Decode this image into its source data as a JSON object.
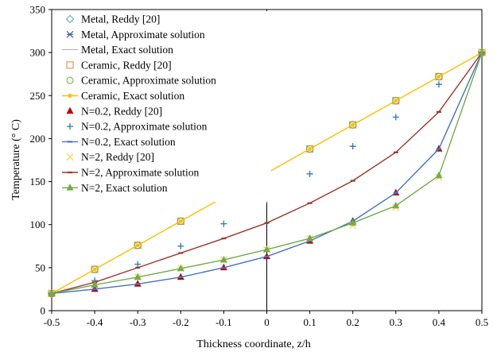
{
  "chart_data": {
    "type": "line",
    "title": "",
    "xlabel": "Thickness coordinate, z/h",
    "ylabel": "Temperature (° C)",
    "xlim": [
      -0.5,
      0.5
    ],
    "ylim": [
      0,
      350
    ],
    "x_ticks": [
      "-0.5",
      "-0.4",
      "-0.3",
      "-0.2",
      "-0.1",
      "0",
      "0.1",
      "0.2",
      "0.3",
      "0.4",
      "0.5"
    ],
    "y_ticks": [
      "0",
      "50",
      "100",
      "150",
      "200",
      "250",
      "300",
      "350"
    ],
    "grid": false,
    "legend_position": "top-left",
    "x": [
      -0.5,
      -0.4,
      -0.3,
      -0.2,
      -0.1,
      0,
      0.1,
      0.2,
      0.3,
      0.4,
      0.5
    ],
    "series": [
      {
        "name": "Metal, Reddy [20]",
        "color": "#5b9bd5",
        "marker": "diamond-open",
        "line": false,
        "values": [
          20,
          48,
          76,
          104,
          132,
          160,
          188,
          216,
          244,
          272,
          300
        ]
      },
      {
        "name": "Metal, Approximate solution",
        "color": "#3f5fa0",
        "marker": "star",
        "line": false,
        "values": [
          20,
          48,
          76,
          104,
          132,
          160,
          188,
          216,
          244,
          272,
          300
        ]
      },
      {
        "name": "Metal, Exact solution",
        "color": "#a5a5a5",
        "marker": "none",
        "line": true,
        "values": [
          20,
          48,
          76,
          104,
          132,
          160,
          188,
          216,
          244,
          272,
          300
        ]
      },
      {
        "name": "Ceramic, Reddy [20]",
        "color": "#ed7d31",
        "marker": "square-open",
        "line": false,
        "values": [
          20,
          48,
          76,
          104,
          132,
          160,
          188,
          216,
          244,
          272,
          300
        ]
      },
      {
        "name": "Ceramic, Approximate solution",
        "color": "#70ad47",
        "marker": "circle-open",
        "line": false,
        "values": [
          20,
          48,
          76,
          104,
          132,
          160,
          188,
          216,
          244,
          272,
          300
        ]
      },
      {
        "name": "Ceramic, Exact solution",
        "color": "#ffc000",
        "marker": "dot",
        "line": true,
        "values": [
          20,
          48,
          76,
          104,
          132,
          160,
          188,
          216,
          244,
          272,
          300
        ]
      },
      {
        "name": "N=0.2, Reddy [20]",
        "color": "#c00000",
        "marker": "triangle",
        "line": false,
        "values": [
          20,
          25,
          31,
          39,
          50,
          63,
          81,
          104,
          137,
          188,
          300
        ]
      },
      {
        "name": "N=0.2, Approximate solution",
        "color": "#2e75b6",
        "marker": "plus",
        "line": false,
        "values": [
          20,
          35,
          54,
          75,
          101,
          128,
          159,
          191,
          225,
          263,
          300
        ]
      },
      {
        "name": "N=0.2, Exact solution",
        "color": "#4472c4",
        "marker": "dash",
        "line": true,
        "values": [
          20,
          25,
          31,
          39,
          50,
          63,
          81,
          104,
          137,
          188,
          300
        ]
      },
      {
        "name": "N=2, Reddy [20]",
        "color": "#ffd24d",
        "marker": "x",
        "line": false,
        "values": [
          20,
          30,
          39,
          49,
          59,
          71,
          84,
          99,
          120,
          155,
          300
        ]
      },
      {
        "name": "N=2, Approximate solution",
        "color": "#a0342a",
        "marker": "dash",
        "line": true,
        "values": [
          20,
          33,
          50,
          67,
          84,
          102,
          125,
          151,
          184,
          231,
          300
        ]
      },
      {
        "name": "N=2, Exact solution",
        "color": "#70ad47",
        "marker": "triangle",
        "line": true,
        "values": [
          20,
          30,
          39,
          49,
          59,
          71,
          84,
          102,
          122,
          157,
          300
        ]
      }
    ]
  }
}
